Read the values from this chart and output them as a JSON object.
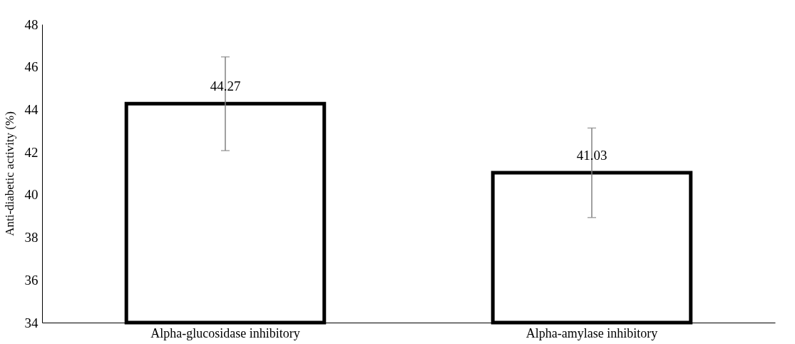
{
  "chart_data": {
    "type": "bar",
    "ylabel": "Anti-diabetic activity (%)",
    "categories": [
      "Alpha-glucosidase inhibitory",
      "Alpha-amylase inhibitory"
    ],
    "values": [
      44.27,
      41.03
    ],
    "errors": [
      2.2,
      2.1
    ],
    "color": "#000000",
    "ylim": [
      34,
      48
    ],
    "yticks": [
      34,
      36,
      38,
      40,
      42,
      44,
      46,
      48
    ],
    "data_labels": true
  }
}
